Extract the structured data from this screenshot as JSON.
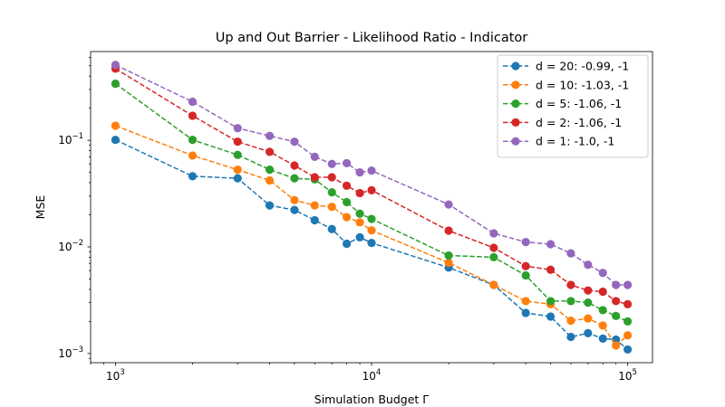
{
  "chart_data": {
    "type": "line",
    "title": "Up and Out Barrier - Likelihood Ratio - Indicator",
    "xlabel": "Simulation Budget Γ",
    "ylabel": "MSE",
    "x_scale": "log",
    "y_scale": "log",
    "xlim": [
      800,
      125000
    ],
    "ylim": [
      0.00082,
      0.68
    ],
    "x_ticks": [
      {
        "value": 1000,
        "base": "10",
        "exp": "3"
      },
      {
        "value": 10000,
        "base": "10",
        "exp": "4"
      },
      {
        "value": 100000,
        "base": "10",
        "exp": "5"
      }
    ],
    "y_ticks": [
      {
        "value": 0.001,
        "base": "10",
        "exp": "−3"
      },
      {
        "value": 0.01,
        "base": "10",
        "exp": "−2"
      },
      {
        "value": 0.1,
        "base": "10",
        "exp": "−1"
      }
    ],
    "grid": false,
    "legend_position": "top-right",
    "line_style": "dashed",
    "marker": "circle",
    "x": [
      1000,
      2000,
      3000,
      4000,
      5000,
      6000,
      7000,
      8000,
      9000,
      10000,
      20000,
      30000,
      40000,
      50000,
      60000,
      70000,
      80000,
      90000,
      100000
    ],
    "series": [
      {
        "name": "d = 20: -0.99, -1",
        "color": "#1f77b4",
        "values": [
          0.101,
          0.046,
          0.044,
          0.0245,
          0.0222,
          0.0178,
          0.0147,
          0.0107,
          0.0123,
          0.0109,
          0.0064,
          0.0044,
          0.0024,
          0.00222,
          0.00143,
          0.00155,
          0.00138,
          0.00135,
          0.00109
        ]
      },
      {
        "name": "d = 10: -1.03, -1",
        "color": "#ff7f0e",
        "values": [
          0.137,
          0.072,
          0.053,
          0.042,
          0.0275,
          0.0245,
          0.0238,
          0.019,
          0.017,
          0.0143,
          0.0071,
          0.0044,
          0.0031,
          0.0029,
          0.00203,
          0.00213,
          0.00183,
          0.00119,
          0.00148
        ]
      },
      {
        "name": "d = 5: -1.06, -1",
        "color": "#2ca02c",
        "values": [
          0.34,
          0.101,
          0.073,
          0.053,
          0.044,
          0.043,
          0.0325,
          0.0263,
          0.0205,
          0.0183,
          0.0083,
          0.008,
          0.0054,
          0.0031,
          0.0031,
          0.003,
          0.00255,
          0.00225,
          0.002
        ]
      },
      {
        "name": "d = 2: -1.06, -1",
        "color": "#d62728",
        "values": [
          0.47,
          0.17,
          0.097,
          0.078,
          0.058,
          0.045,
          0.045,
          0.0375,
          0.032,
          0.034,
          0.0142,
          0.0098,
          0.0066,
          0.0061,
          0.0044,
          0.0039,
          0.0038,
          0.0031,
          0.0029
        ]
      },
      {
        "name": "d = 1: -1.0, -1",
        "color": "#9467bd",
        "values": [
          0.51,
          0.23,
          0.13,
          0.11,
          0.097,
          0.07,
          0.06,
          0.061,
          0.05,
          0.052,
          0.025,
          0.0134,
          0.0111,
          0.0106,
          0.0087,
          0.0068,
          0.0057,
          0.0044,
          0.0044
        ]
      }
    ]
  }
}
